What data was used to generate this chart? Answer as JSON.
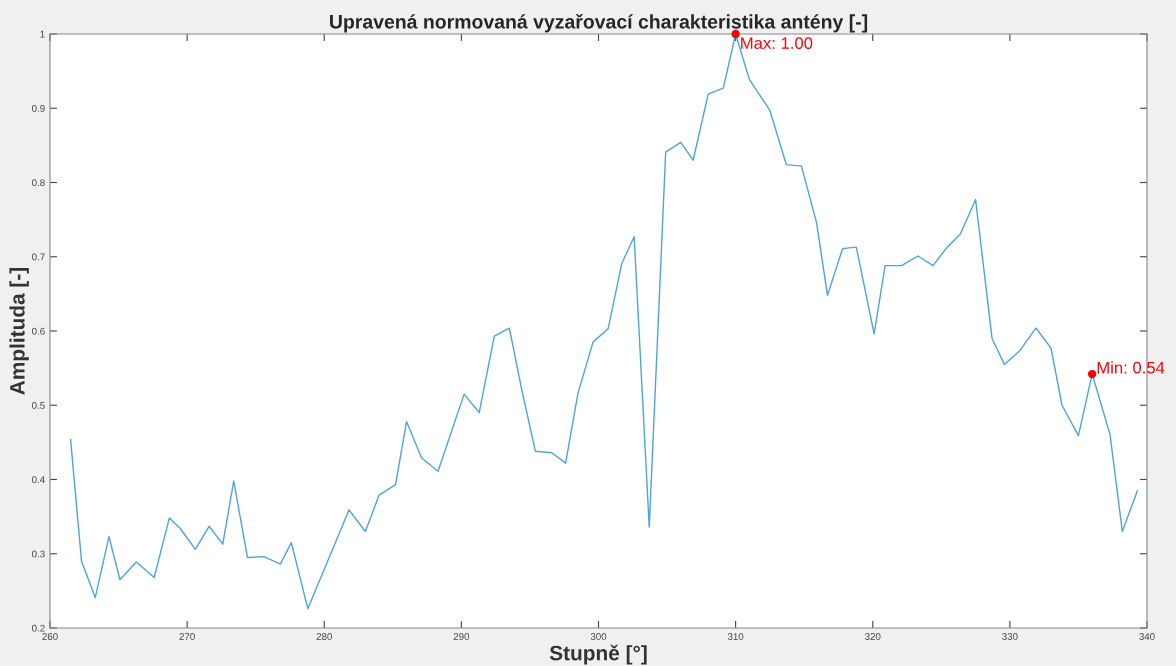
{
  "chart_data": {
    "type": "line",
    "title": "Upravená normovaná vyzařovací charakteristika antény [-]",
    "xlabel": "Stupně [°]",
    "ylabel": "Amplituda [-]",
    "series": [
      {
        "color": "#4da3dd",
        "x": [
          261.5,
          262.3,
          263.3,
          264.3,
          265.1,
          266.3,
          267.6,
          268.7,
          269.5,
          270.6,
          271.6,
          272.6,
          273.4,
          274.4,
          275.6,
          276.8,
          277.6,
          278.8,
          281.8,
          283.0,
          284.0,
          285.2,
          286.0,
          287.1,
          288.3,
          290.2,
          291.3,
          292.4,
          293.5,
          294.4,
          295.4,
          296.6,
          297.6,
          298.5,
          299.6,
          300.7,
          301.7,
          302.6,
          303.7,
          304.9,
          306.0,
          306.9,
          308.0,
          309.1,
          310.0,
          311.0,
          312.5,
          313.7,
          314.8,
          315.9,
          316.7,
          317.8,
          318.8,
          320.1,
          320.9,
          322.1,
          323.3,
          324.4,
          325.3,
          326.4,
          327.5,
          328.7,
          329.6,
          330.7,
          331.9,
          333.0,
          333.8,
          335.0,
          336.0,
          337.3,
          338.2,
          339.3
        ],
        "values": [
          0.454,
          0.29,
          0.241,
          0.323,
          0.265,
          0.289,
          0.268,
          0.348,
          0.334,
          0.306,
          0.337,
          0.313,
          0.398,
          0.295,
          0.296,
          0.286,
          0.315,
          0.226,
          0.359,
          0.33,
          0.379,
          0.393,
          0.478,
          0.429,
          0.411,
          0.515,
          0.49,
          0.593,
          0.604,
          0.521,
          0.438,
          0.436,
          0.422,
          0.516,
          0.585,
          0.603,
          0.691,
          0.727,
          0.336,
          0.841,
          0.854,
          0.83,
          0.919,
          0.927,
          1.0,
          0.939,
          0.897,
          0.824,
          0.822,
          0.746,
          0.648,
          0.711,
          0.713,
          0.596,
          0.688,
          0.688,
          0.701,
          0.688,
          0.71,
          0.731,
          0.777,
          0.59,
          0.555,
          0.573,
          0.604,
          0.577,
          0.5,
          0.459,
          0.542,
          0.461,
          0.33,
          0.385
        ]
      }
    ],
    "annotations": [
      {
        "text": "Max: 1.00",
        "x": 310.0,
        "y": 1.0
      },
      {
        "text": "Min: 0.54",
        "x": 336.0,
        "y": 0.542
      }
    ],
    "xlim": [
      260,
      340
    ],
    "ylim": [
      0.2,
      1
    ],
    "xticks": [
      260,
      270,
      280,
      290,
      300,
      310,
      320,
      330,
      340
    ],
    "yticks": [
      0.2,
      0.3,
      0.4,
      0.5,
      0.6,
      0.7,
      0.8,
      0.9,
      1
    ],
    "grid": false,
    "marker": "none",
    "line_style": "solid"
  }
}
